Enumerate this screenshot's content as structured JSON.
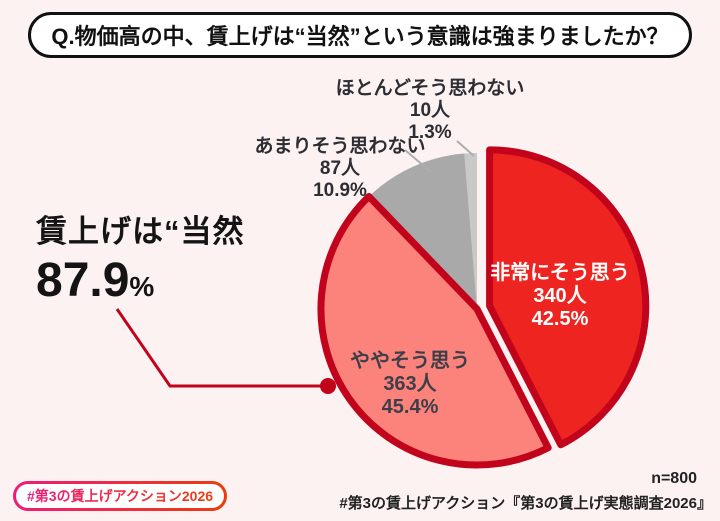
{
  "background_color": "#fcf2f1",
  "question": {
    "text": "Q.物価高の中、賃上げは“当然”という意識は強まりましたか？"
  },
  "headline": {
    "prefix": "賃上げは“当然",
    "value": "87.9",
    "unit": "%",
    "callout_color": "#c1031c"
  },
  "chart_data": {
    "type": "pie",
    "title": "物価高の中、賃上げは“当然”という意識は強まりましたか？",
    "direction": "clockwise",
    "start_angle_deg": 0,
    "outline_color": "#c1031c",
    "total_respondents": 800,
    "highlight_total_percent": 87.9,
    "slices": [
      {
        "label": "非常にそう思う",
        "count": "340人",
        "percent": "42.5%",
        "value": 42.5,
        "color": "#ee2420",
        "exploded": true,
        "outlined": true
      },
      {
        "label": "ややそう思う",
        "count": "363人",
        "percent": "45.4%",
        "value": 45.4,
        "color": "#fb837b",
        "exploded": false,
        "outlined": true
      },
      {
        "label": "あまりそう思わない",
        "count": "87人",
        "percent": "10.9%",
        "value": 10.9,
        "color": "#a9a9a9",
        "exploded": false,
        "outlined": false
      },
      {
        "label": "ほとんどそう思わない",
        "count": "10人",
        "percent": "1.3%",
        "value": 1.3,
        "color": "#c9c9c9",
        "exploded": false,
        "outlined": false
      }
    ]
  },
  "footer": {
    "sample_size": "n=800",
    "source": "#第3の賃上げアクション『第3の賃上げ実態調査2026』",
    "badge": "#第3の賃上げアクション2026",
    "badge_gradient": [
      "#ee1c79",
      "#ec3c0e"
    ]
  }
}
